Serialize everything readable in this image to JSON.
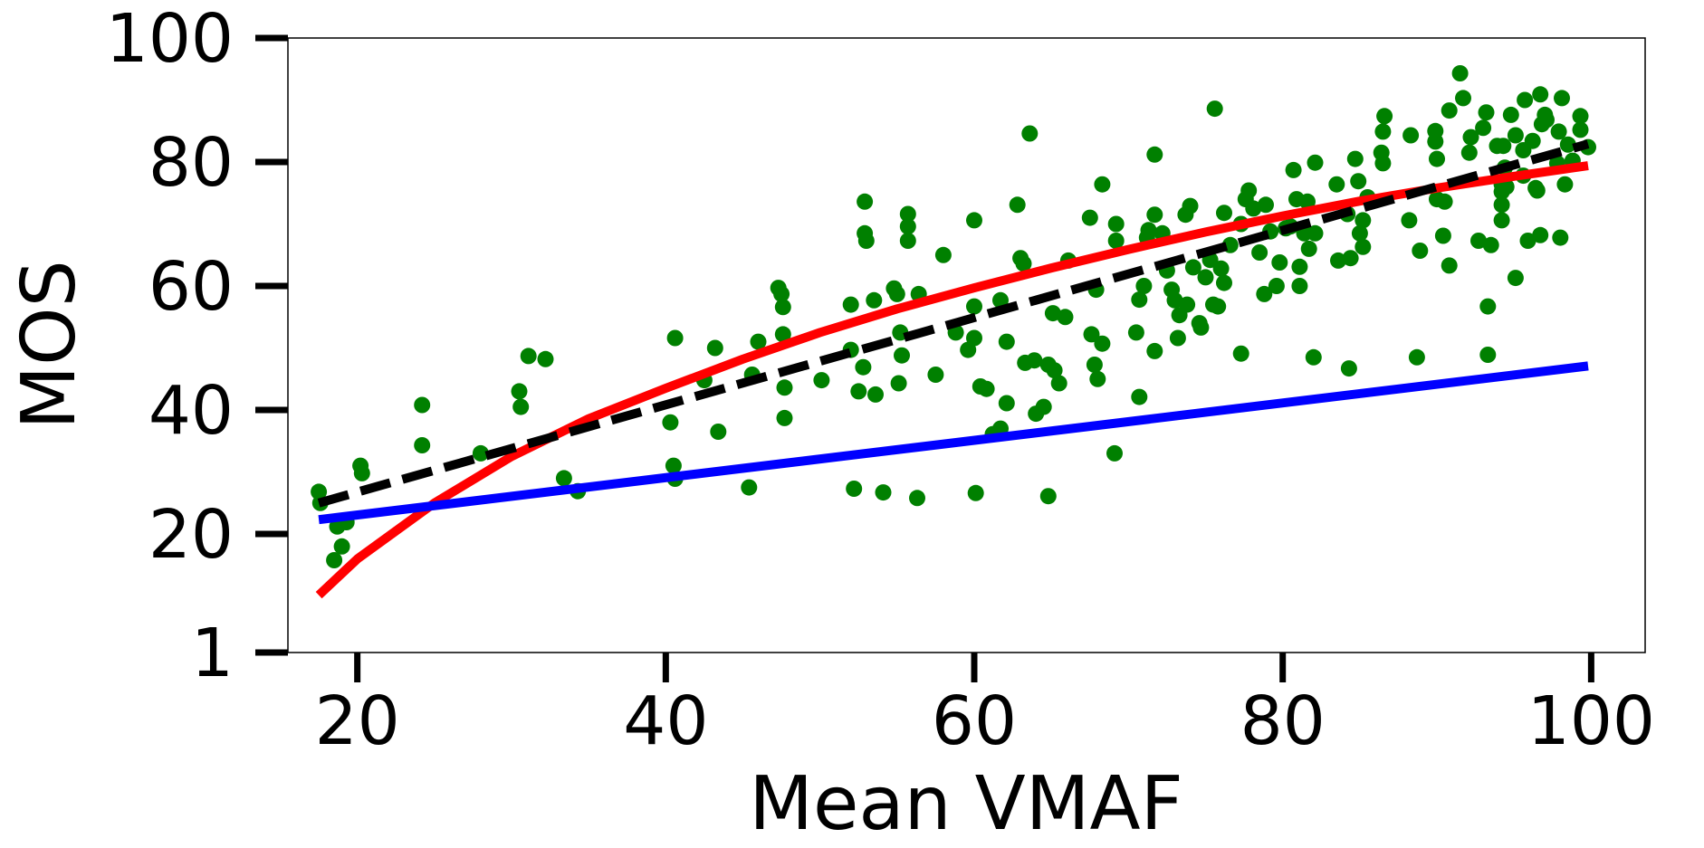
{
  "chart_data": {
    "type": "scatter",
    "title": "",
    "xlabel": "Mean VMAF",
    "ylabel": "MOS",
    "xlim": [
      15.5,
      103.5
    ],
    "ylim": [
      1,
      100
    ],
    "xticks": [
      20,
      40,
      60,
      80,
      100
    ],
    "xtick_labels": [
      "20",
      "40",
      "60",
      "80",
      "100"
    ],
    "yticks": [
      1,
      20,
      40,
      60,
      80,
      100
    ],
    "ytick_labels": [
      "1",
      "20",
      "40",
      "60",
      "80",
      "100"
    ],
    "grid": false,
    "legend": "none",
    "colors": {
      "points": "#008000",
      "red_curve": "#ff0000",
      "blue_line": "#0000ff",
      "dashed_fit": "#000000"
    },
    "series": [
      {
        "type": "scatter",
        "color": "#008000",
        "points": [
          [
            17.5,
            26.8
          ],
          [
            17.6,
            25.0
          ],
          [
            18.5,
            15.8
          ],
          [
            18.7,
            21.2
          ],
          [
            19.0,
            18.0
          ],
          [
            19.3,
            21.9
          ],
          [
            20.2,
            31.0
          ],
          [
            20.3,
            29.8
          ],
          [
            24.2,
            40.8
          ],
          [
            24.2,
            34.3
          ],
          [
            28.0,
            33.0
          ],
          [
            30.5,
            43.0
          ],
          [
            30.6,
            40.5
          ],
          [
            31.1,
            48.7
          ],
          [
            32.2,
            48.2
          ],
          [
            33.4,
            29.0
          ],
          [
            34.3,
            26.9
          ],
          [
            40.3,
            38.0
          ],
          [
            40.5,
            31.0
          ],
          [
            40.6,
            28.9
          ],
          [
            40.6,
            51.6
          ],
          [
            42.5,
            44.8
          ],
          [
            43.2,
            50.0
          ],
          [
            43.4,
            36.5
          ],
          [
            45.4,
            27.5
          ],
          [
            45.6,
            45.7
          ],
          [
            46.0,
            51.0
          ],
          [
            47.3,
            59.7
          ],
          [
            47.5,
            58.7
          ],
          [
            47.6,
            56.6
          ],
          [
            47.6,
            52.2
          ],
          [
            47.7,
            43.6
          ],
          [
            47.7,
            38.7
          ],
          [
            50.1,
            44.8
          ],
          [
            52.0,
            57.0
          ],
          [
            52.0,
            49.7
          ],
          [
            52.2,
            27.3
          ],
          [
            52.5,
            43.0
          ],
          [
            52.8,
            46.9
          ],
          [
            52.9,
            73.6
          ],
          [
            52.9,
            68.5
          ],
          [
            53.0,
            67.3
          ],
          [
            53.5,
            57.7
          ],
          [
            53.6,
            42.5
          ],
          [
            54.1,
            26.7
          ],
          [
            54.8,
            59.6
          ],
          [
            55.0,
            58.7
          ],
          [
            55.1,
            44.3
          ],
          [
            55.2,
            52.5
          ],
          [
            55.3,
            48.8
          ],
          [
            55.7,
            71.6
          ],
          [
            55.7,
            69.6
          ],
          [
            55.7,
            67.3
          ],
          [
            56.3,
            25.8
          ],
          [
            56.4,
            58.7
          ],
          [
            57.5,
            45.7
          ],
          [
            58.0,
            65.0
          ],
          [
            58.8,
            52.5
          ],
          [
            59.6,
            49.7
          ],
          [
            60.0,
            56.7
          ],
          [
            60.0,
            51.6
          ],
          [
            60.0,
            70.6
          ],
          [
            60.1,
            26.6
          ],
          [
            60.4,
            43.8
          ],
          [
            60.8,
            43.4
          ],
          [
            61.2,
            36.1
          ],
          [
            61.7,
            37.0
          ],
          [
            61.7,
            57.7
          ],
          [
            62.1,
            51.0
          ],
          [
            62.1,
            41.1
          ],
          [
            62.8,
            73.1
          ],
          [
            63.0,
            64.5
          ],
          [
            63.2,
            63.6
          ],
          [
            63.3,
            47.6
          ],
          [
            63.6,
            84.6
          ],
          [
            63.9,
            48.0
          ],
          [
            64.0,
            39.4
          ],
          [
            64.5,
            40.5
          ],
          [
            64.8,
            26.1
          ],
          [
            64.8,
            47.3
          ],
          [
            65.1,
            55.6
          ],
          [
            65.2,
            46.4
          ],
          [
            65.5,
            44.3
          ],
          [
            65.9,
            55.0
          ],
          [
            66.1,
            64.1
          ],
          [
            67.5,
            71.0
          ],
          [
            67.6,
            52.2
          ],
          [
            67.8,
            47.3
          ],
          [
            67.9,
            59.4
          ],
          [
            68.0,
            45.0
          ],
          [
            68.3,
            76.4
          ],
          [
            68.3,
            50.7
          ],
          [
            69.1,
            33.0
          ],
          [
            69.2,
            70.0
          ],
          [
            69.2,
            67.3
          ],
          [
            70.5,
            52.5
          ],
          [
            70.7,
            57.8
          ],
          [
            70.7,
            42.1
          ],
          [
            71.0,
            60.0
          ],
          [
            71.2,
            67.8
          ],
          [
            71.3,
            69.0
          ],
          [
            71.7,
            81.2
          ],
          [
            71.7,
            71.5
          ],
          [
            71.7,
            49.5
          ],
          [
            72.2,
            68.5
          ],
          [
            72.5,
            62.5
          ],
          [
            72.8,
            59.4
          ],
          [
            73.0,
            57.7
          ],
          [
            73.2,
            51.6
          ],
          [
            73.3,
            55.3
          ],
          [
            73.7,
            71.5
          ],
          [
            73.8,
            57.0
          ],
          [
            74.0,
            72.9
          ],
          [
            74.2,
            63.0
          ],
          [
            74.6,
            54.0
          ],
          [
            74.7,
            53.3
          ],
          [
            75.0,
            61.4
          ],
          [
            75.3,
            64.2
          ],
          [
            75.5,
            57.0
          ],
          [
            75.6,
            88.6
          ],
          [
            75.8,
            56.7
          ],
          [
            76.0,
            62.8
          ],
          [
            76.2,
            71.8
          ],
          [
            76.2,
            60.5
          ],
          [
            76.6,
            66.6
          ],
          [
            77.3,
            49.1
          ],
          [
            77.3,
            70.0
          ],
          [
            77.6,
            74.0
          ],
          [
            77.8,
            75.4
          ],
          [
            78.1,
            72.5
          ],
          [
            78.5,
            65.4
          ],
          [
            78.8,
            58.7
          ],
          [
            78.9,
            73.1
          ],
          [
            79.2,
            68.8
          ],
          [
            79.6,
            60.0
          ],
          [
            79.8,
            63.8
          ],
          [
            80.2,
            69.3
          ],
          [
            80.5,
            69.6
          ],
          [
            80.7,
            78.7
          ],
          [
            80.9,
            74.0
          ],
          [
            81.1,
            63.1
          ],
          [
            81.1,
            60.0
          ],
          [
            81.4,
            68.5
          ],
          [
            81.6,
            73.6
          ],
          [
            81.7,
            66.0
          ],
          [
            82.0,
            48.5
          ],
          [
            82.1,
            79.9
          ],
          [
            82.1,
            68.5
          ],
          [
            83.5,
            76.4
          ],
          [
            83.6,
            64.1
          ],
          [
            84.2,
            71.6
          ],
          [
            84.3,
            46.7
          ],
          [
            84.4,
            64.5
          ],
          [
            84.7,
            80.5
          ],
          [
            84.9,
            76.9
          ],
          [
            85.0,
            68.5
          ],
          [
            85.2,
            70.6
          ],
          [
            85.2,
            66.3
          ],
          [
            85.5,
            74.3
          ],
          [
            86.4,
            81.5
          ],
          [
            86.5,
            79.8
          ],
          [
            86.5,
            84.9
          ],
          [
            86.6,
            87.4
          ],
          [
            88.2,
            70.6
          ],
          [
            88.3,
            84.3
          ],
          [
            88.7,
            48.5
          ],
          [
            88.9,
            65.7
          ],
          [
            89.9,
            85.0
          ],
          [
            89.9,
            83.3
          ],
          [
            90.0,
            74.0
          ],
          [
            90.0,
            80.5
          ],
          [
            90.4,
            68.1
          ],
          [
            90.5,
            73.6
          ],
          [
            90.8,
            63.3
          ],
          [
            90.8,
            88.3
          ],
          [
            91.5,
            94.3
          ],
          [
            91.7,
            90.3
          ],
          [
            92.1,
            81.5
          ],
          [
            92.2,
            84.0
          ],
          [
            92.7,
            67.3
          ],
          [
            93.0,
            85.5
          ],
          [
            93.2,
            88.0
          ],
          [
            93.3,
            56.7
          ],
          [
            93.3,
            48.9
          ],
          [
            93.5,
            66.6
          ],
          [
            93.9,
            82.6
          ],
          [
            94.2,
            76.4
          ],
          [
            94.2,
            73.1
          ],
          [
            94.2,
            70.6
          ],
          [
            94.2,
            75.2
          ],
          [
            94.3,
            82.6
          ],
          [
            94.4,
            79.1
          ],
          [
            94.5,
            76.0
          ],
          [
            94.8,
            87.6
          ],
          [
            95.1,
            84.3
          ],
          [
            95.1,
            61.3
          ],
          [
            95.6,
            77.8
          ],
          [
            95.6,
            81.9
          ],
          [
            95.7,
            90.0
          ],
          [
            95.9,
            67.3
          ],
          [
            96.2,
            83.4
          ],
          [
            96.4,
            75.8
          ],
          [
            96.5,
            75.4
          ],
          [
            96.7,
            68.2
          ],
          [
            96.7,
            90.9
          ],
          [
            96.8,
            86.1
          ],
          [
            97.0,
            87.6
          ],
          [
            97.1,
            86.8
          ],
          [
            97.8,
            79.8
          ],
          [
            97.9,
            84.9
          ],
          [
            98.0,
            67.8
          ],
          [
            98.1,
            90.3
          ],
          [
            98.3,
            76.4
          ],
          [
            98.5,
            82.8
          ],
          [
            98.8,
            80.2
          ],
          [
            99.3,
            87.4
          ],
          [
            99.3,
            85.2
          ],
          [
            99.8,
            82.4
          ]
        ]
      },
      {
        "type": "line",
        "color": "#ff0000",
        "style": "solid",
        "x": [
          17.5,
          20.0,
          25.0,
          30.0,
          35.0,
          40.0,
          45.0,
          50.0,
          55.0,
          60.0,
          65.0,
          70.0,
          75.0,
          80.0,
          85.0,
          90.0,
          95.0,
          99.8
        ],
        "values": [
          10.2,
          16.0,
          25.0,
          32.5,
          38.6,
          43.5,
          48.2,
          52.5,
          56.3,
          59.7,
          62.9,
          65.9,
          68.7,
          71.3,
          73.7,
          75.8,
          77.7,
          79.4
        ]
      },
      {
        "type": "line",
        "color": "#0000ff",
        "style": "solid",
        "x": [
          17.5,
          99.8
        ],
        "values": [
          22.3,
          47.1
        ]
      },
      {
        "type": "line",
        "color": "#000000",
        "style": "dashed",
        "x": [
          17.5,
          99.8
        ],
        "values": [
          25.0,
          82.9
        ]
      }
    ]
  }
}
